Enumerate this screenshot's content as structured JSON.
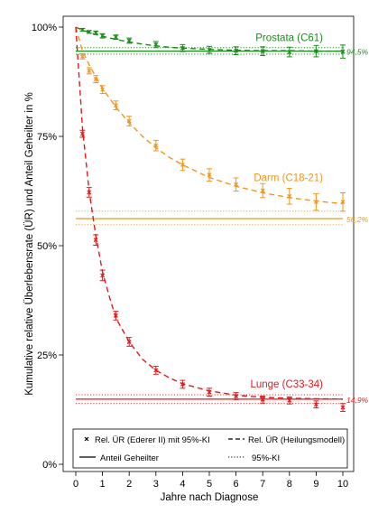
{
  "chart_data": {
    "type": "line",
    "xlabel": "Jahre nach Diagnose",
    "ylabel": "Kumulative relative Überlebensrate (ÜR) und Anteil Geheilter in %",
    "xlim": [
      0,
      10
    ],
    "ylim": [
      0,
      100
    ],
    "x_ticks": [
      "0",
      "1",
      "2",
      "3",
      "4",
      "5",
      "6",
      "7",
      "8",
      "9",
      "10"
    ],
    "y_ticks": [
      "0%",
      "25%",
      "50%",
      "75%",
      "100%"
    ],
    "grid": false,
    "legend": {
      "placement": "bottom",
      "entries": [
        "Rel. ÜR (Ederer II) mit 95%-KI",
        "Rel. ÜR (Heilungsmodell)",
        "Anteil Geheilter",
        "95%-KI"
      ]
    },
    "series": [
      {
        "name": "Prostata (C61)",
        "color": "#1a8c1a",
        "cure_fraction": 94.5,
        "cure_label": "94,5%",
        "cure_ci": [
          93.8,
          95.3
        ],
        "x": [
          0.25,
          0.5,
          0.75,
          1,
          1.5,
          2,
          3,
          4,
          5,
          6,
          7,
          8,
          9,
          10
        ],
        "y": [
          99.4,
          98.9,
          98.7,
          98.0,
          97.7,
          96.9,
          96.0,
          95.2,
          94.8,
          94.6,
          94.5,
          94.3,
          94.5,
          94.4
        ],
        "ci_half": [
          0.3,
          0.3,
          0.4,
          0.5,
          0.5,
          0.6,
          0.7,
          0.8,
          0.8,
          0.9,
          1.0,
          1.1,
          1.3,
          1.5
        ],
        "model_x": [
          0,
          0.25,
          0.5,
          0.75,
          1,
          1.5,
          2,
          2.5,
          3,
          3.5,
          4,
          5,
          6,
          7,
          8,
          9,
          10
        ],
        "model_y": [
          100,
          99.3,
          98.8,
          98.3,
          97.9,
          97.2,
          96.6,
          96.1,
          95.7,
          95.4,
          95.2,
          94.9,
          94.7,
          94.6,
          94.6,
          94.5,
          94.5
        ]
      },
      {
        "name": "Darm (C18-21)",
        "color": "#f0961e",
        "cure_fraction": 56.2,
        "cure_label": "56,2%",
        "cure_ci": [
          54.8,
          57.9
        ],
        "x": [
          0.25,
          0.5,
          0.75,
          1,
          1.5,
          2,
          3,
          4,
          5,
          6,
          7,
          8,
          9,
          10
        ],
        "y": [
          93.3,
          90.0,
          88.1,
          85.7,
          82.1,
          78.5,
          72.9,
          68.5,
          66.2,
          64.0,
          62.6,
          61.3,
          60.0,
          60.0
        ],
        "ci_half": [
          0.6,
          0.7,
          0.8,
          0.9,
          1.0,
          1.1,
          1.2,
          1.3,
          1.4,
          1.5,
          1.6,
          1.8,
          1.9,
          2.1
        ],
        "model_x": [
          0,
          0.25,
          0.5,
          0.75,
          1,
          1.5,
          2,
          2.5,
          3,
          3.5,
          4,
          5,
          6,
          7,
          8,
          9,
          10
        ],
        "model_y": [
          100,
          94.5,
          91.4,
          88.6,
          86.0,
          81.7,
          78.1,
          75.0,
          72.4,
          70.2,
          68.5,
          65.6,
          63.6,
          62.1,
          61.0,
          60.2,
          59.6
        ]
      },
      {
        "name": "Lunge (C33-34)",
        "color": "#e31a1c",
        "cure_fraction": 14.9,
        "cure_label": "14,9%",
        "cure_ci": [
          13.9,
          15.9
        ],
        "x": [
          0.25,
          0.5,
          0.75,
          1,
          1.5,
          2,
          3,
          4,
          5,
          6,
          7,
          8,
          9,
          10
        ],
        "y": [
          75.6,
          62.2,
          51.3,
          43.2,
          34.0,
          28.0,
          21.5,
          18.3,
          16.5,
          15.6,
          14.8,
          14.6,
          13.7,
          13.0
        ],
        "ci_half": [
          0.8,
          1.1,
          1.2,
          1.2,
          1.0,
          1.0,
          0.9,
          0.9,
          0.9,
          0.8,
          0.8,
          0.8,
          0.8,
          0.9
        ],
        "model_x": [
          0,
          0.25,
          0.5,
          0.75,
          1,
          1.25,
          1.5,
          2,
          2.5,
          3,
          3.5,
          4,
          5,
          6,
          7,
          8,
          9,
          10
        ],
        "model_y": [
          100,
          77.0,
          62.5,
          52.3,
          44.0,
          38.5,
          33.5,
          28.0,
          24.0,
          21.5,
          19.8,
          18.4,
          16.8,
          15.8,
          15.3,
          15.1,
          15.0,
          14.9
        ]
      }
    ]
  }
}
